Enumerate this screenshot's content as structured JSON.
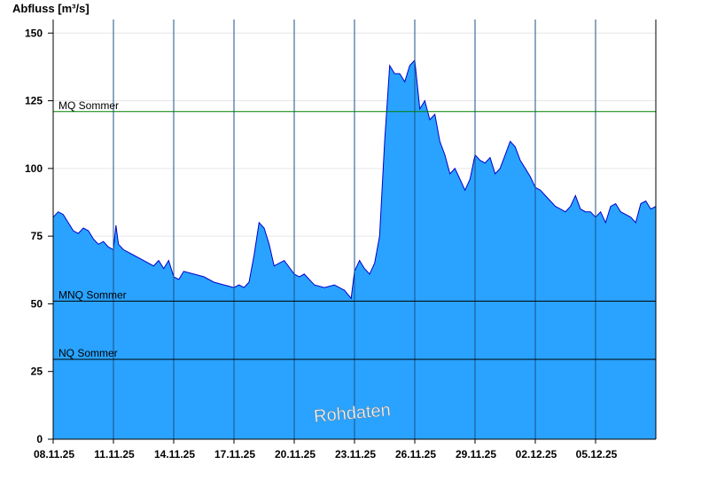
{
  "chart_data": {
    "type": "area",
    "title": "",
    "ylabel": "Abfluss [m³/s]",
    "xlabel": "",
    "ylim": [
      0,
      155
    ],
    "yticks": [
      0,
      25,
      50,
      75,
      100,
      125,
      150
    ],
    "xlim": [
      "08.11.25 00:00",
      "08.12.25 00:00"
    ],
    "xticks": [
      "08.11.25",
      "11.11.25",
      "14.11.25",
      "17.11.25",
      "20.11.25",
      "23.11.25",
      "26.11.25",
      "29.11.25",
      "02.12.25",
      "05.12.25"
    ],
    "grid": {
      "vertical": true,
      "horizontal": true
    },
    "colors": {
      "fill": "#29a3ff",
      "line": "#0000cc",
      "mq_line": "#008000",
      "ref_line": "#000000",
      "grid": "#e6e6e6"
    },
    "series": [
      {
        "x": [
          "08.11.25 00:00",
          "08.11.25 06:00",
          "08.11.25 12:00",
          "08.11.25 18:00",
          "09.11.25 00:00",
          "09.11.25 06:00",
          "09.11.25 12:00",
          "09.11.25 18:00",
          "10.11.25 00:00",
          "10.11.25 06:00",
          "10.11.25 12:00",
          "10.11.25 18:00",
          "11.11.25 00:00",
          "11.11.25 03:00",
          "11.11.25 06:00",
          "11.11.25 12:00",
          "12.11.25 00:00",
          "12.11.25 12:00",
          "13.11.25 00:00",
          "13.11.25 06:00",
          "13.11.25 12:00",
          "13.11.25 18:00",
          "14.11.25 00:00",
          "14.11.25 06:00",
          "14.11.25 12:00",
          "15.11.25 00:00",
          "15.11.25 12:00",
          "16.11.25 00:00",
          "16.11.25 12:00",
          "17.11.25 00:00",
          "17.11.25 06:00",
          "17.11.25 12:00",
          "17.11.25 18:00",
          "18.11.25 00:00",
          "18.11.25 06:00",
          "18.11.25 12:00",
          "18.11.25 18:00",
          "19.11.25 00:00",
          "19.11.25 12:00",
          "20.11.25 00:00",
          "20.11.25 06:00",
          "20.11.25 12:00",
          "21.11.25 00:00",
          "21.11.25 12:00",
          "22.11.25 00:00",
          "22.11.25 12:00",
          "22.11.25 20:00",
          "23.11.25 00:00",
          "23.11.25 06:00",
          "23.11.25 12:00",
          "23.11.25 18:00",
          "24.11.25 00:00",
          "24.11.25 06:00",
          "24.11.25 12:00",
          "24.11.25 18:00",
          "25.11.25 00:00",
          "25.11.25 06:00",
          "25.11.25 12:00",
          "25.11.25 18:00",
          "26.11.25 00:00",
          "26.11.25 06:00",
          "26.11.25 12:00",
          "26.11.25 18:00",
          "27.11.25 00:00",
          "27.11.25 06:00",
          "27.11.25 12:00",
          "27.11.25 18:00",
          "28.11.25 00:00",
          "28.11.25 06:00",
          "28.11.25 12:00",
          "28.11.25 18:00",
          "29.11.25 00:00",
          "29.11.25 06:00",
          "29.11.25 12:00",
          "29.11.25 18:00",
          "30.11.25 00:00",
          "30.11.25 06:00",
          "30.11.25 12:00",
          "30.11.25 18:00",
          "01.12.25 00:00",
          "01.12.25 06:00",
          "01.12.25 12:00",
          "01.12.25 18:00",
          "02.12.25 00:00",
          "02.12.25 06:00",
          "02.12.25 12:00",
          "02.12.25 18:00",
          "03.12.25 00:00",
          "03.12.25 06:00",
          "03.12.25 12:00",
          "03.12.25 18:00",
          "04.12.25 00:00",
          "04.12.25 06:00",
          "04.12.25 12:00",
          "04.12.25 18:00",
          "05.12.25 00:00",
          "05.12.25 06:00",
          "05.12.25 12:00",
          "05.12.25 18:00",
          "06.12.25 00:00",
          "06.12.25 06:00",
          "06.12.25 12:00",
          "06.12.25 18:00",
          "07.12.25 00:00",
          "07.12.25 06:00",
          "07.12.25 12:00",
          "07.12.25 18:00",
          "08.12.25 00:00"
        ],
        "values": [
          82,
          84,
          83,
          80,
          77,
          76,
          78,
          77,
          74,
          72,
          73,
          71,
          70,
          79,
          72,
          70,
          68,
          66,
          64,
          66,
          63,
          66,
          60,
          59,
          62,
          61,
          60,
          58,
          57,
          56,
          57,
          56,
          58,
          68,
          80,
          78,
          72,
          64,
          66,
          61,
          60,
          61,
          57,
          56,
          57,
          55,
          52,
          62,
          66,
          63,
          61,
          65,
          75,
          110,
          138,
          135,
          135,
          132,
          138,
          140,
          122,
          125,
          118,
          120,
          110,
          105,
          98,
          100,
          96,
          92,
          96,
          105,
          103,
          102,
          104,
          98,
          100,
          105,
          110,
          108,
          103,
          100,
          97,
          93,
          92,
          90,
          88,
          86,
          85,
          84,
          86,
          90,
          85,
          84,
          84,
          82,
          84,
          80,
          86,
          87,
          84,
          83,
          82,
          80,
          87,
          88,
          85,
          86
        ],
        "_note": ""
      }
    ],
    "reference_lines": [
      {
        "label": "MQ Sommer",
        "value": 121
      },
      {
        "label": "MNQ Sommer",
        "value": 51
      },
      {
        "label": "NQ Sommer",
        "value": 29.5
      }
    ],
    "watermark": "Rohdaten"
  }
}
